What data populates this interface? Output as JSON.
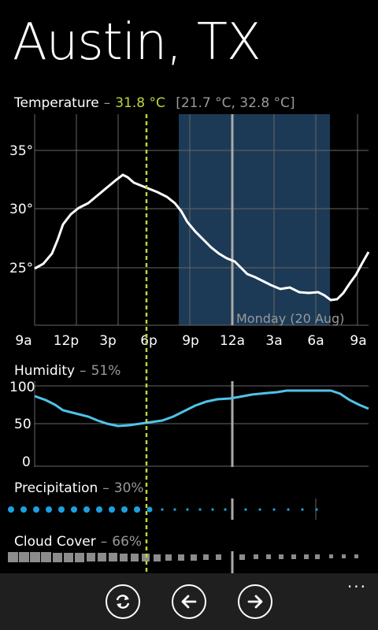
{
  "city": "Austin, TX",
  "temperature": {
    "label": "Temperature",
    "current": "31.8 °C",
    "range": "[21.7 °C, 32.8 °C]",
    "y_ticks": [
      "35°",
      "30°",
      "25°"
    ],
    "x_ticks": [
      "9a",
      "12p",
      "3p",
      "6p",
      "9p",
      "12a",
      "3a",
      "6a",
      "9a"
    ],
    "day_marker": "Monday (20 Aug)"
  },
  "humidity": {
    "label": "Humidity",
    "current": "51%",
    "y_ticks": [
      "100",
      "50",
      "0"
    ]
  },
  "precipitation": {
    "label": "Precipitation",
    "current": "30%"
  },
  "cloud_cover": {
    "label": "Cloud Cover",
    "current": "66%"
  },
  "appbar": {
    "icons": [
      "refresh-icon",
      "back-arrow-icon",
      "forward-arrow-icon"
    ],
    "more": "..."
  },
  "colors": {
    "temperature_line": "#ffffff",
    "humidity_line": "#4fc3e8",
    "precipitation_dot": "#1ba1e2",
    "cloud_block": "#8c8c8c",
    "now_marker": "#c2d43c",
    "night_shade": "#1c3a55"
  }
}
